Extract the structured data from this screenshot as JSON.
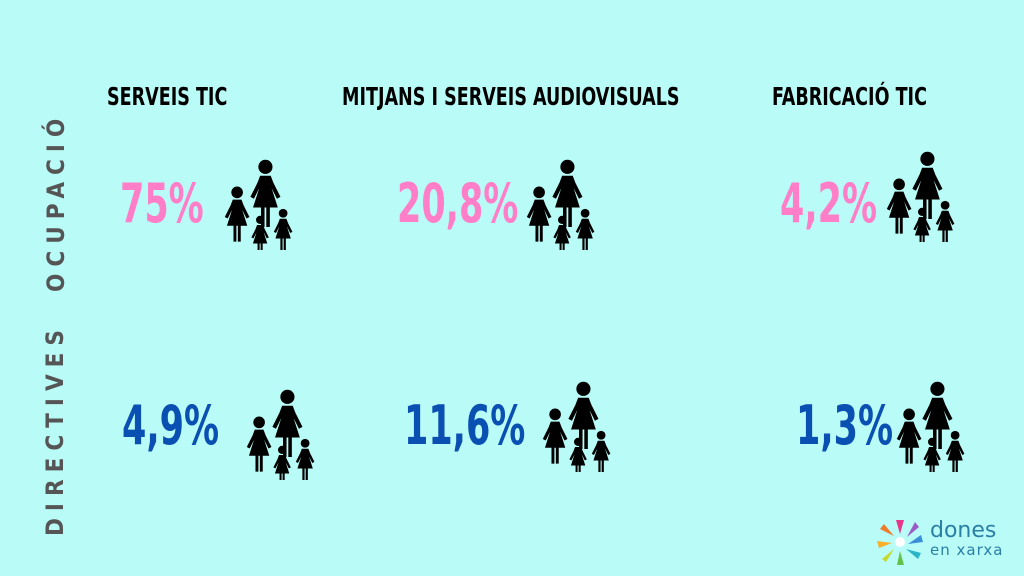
{
  "columns": [
    {
      "label": "SERVEIS TIC"
    },
    {
      "label": "MITJANS I SERVEIS AUDIOVISUALS"
    },
    {
      "label": "FABRICACIÓ TIC"
    }
  ],
  "rows": [
    {
      "label": "OCUPACIÓ",
      "color": "#ff7ec7",
      "values": [
        "75%",
        "20,8%",
        "4,2%"
      ]
    },
    {
      "label": "DIRECTIVES",
      "color": "#0a4fb2",
      "values": [
        "4,9%",
        "11,6%",
        "1,3%"
      ]
    }
  ],
  "icons": {
    "family": "family-icon",
    "logo": "dones-logo-icon"
  },
  "logo": {
    "line1": "dones",
    "line2": "en xarxa"
  },
  "colors": {
    "background": "#b9fbf7",
    "pink": "#ff7ec7",
    "blue": "#0a4fb2",
    "label_gray": "#555555"
  }
}
